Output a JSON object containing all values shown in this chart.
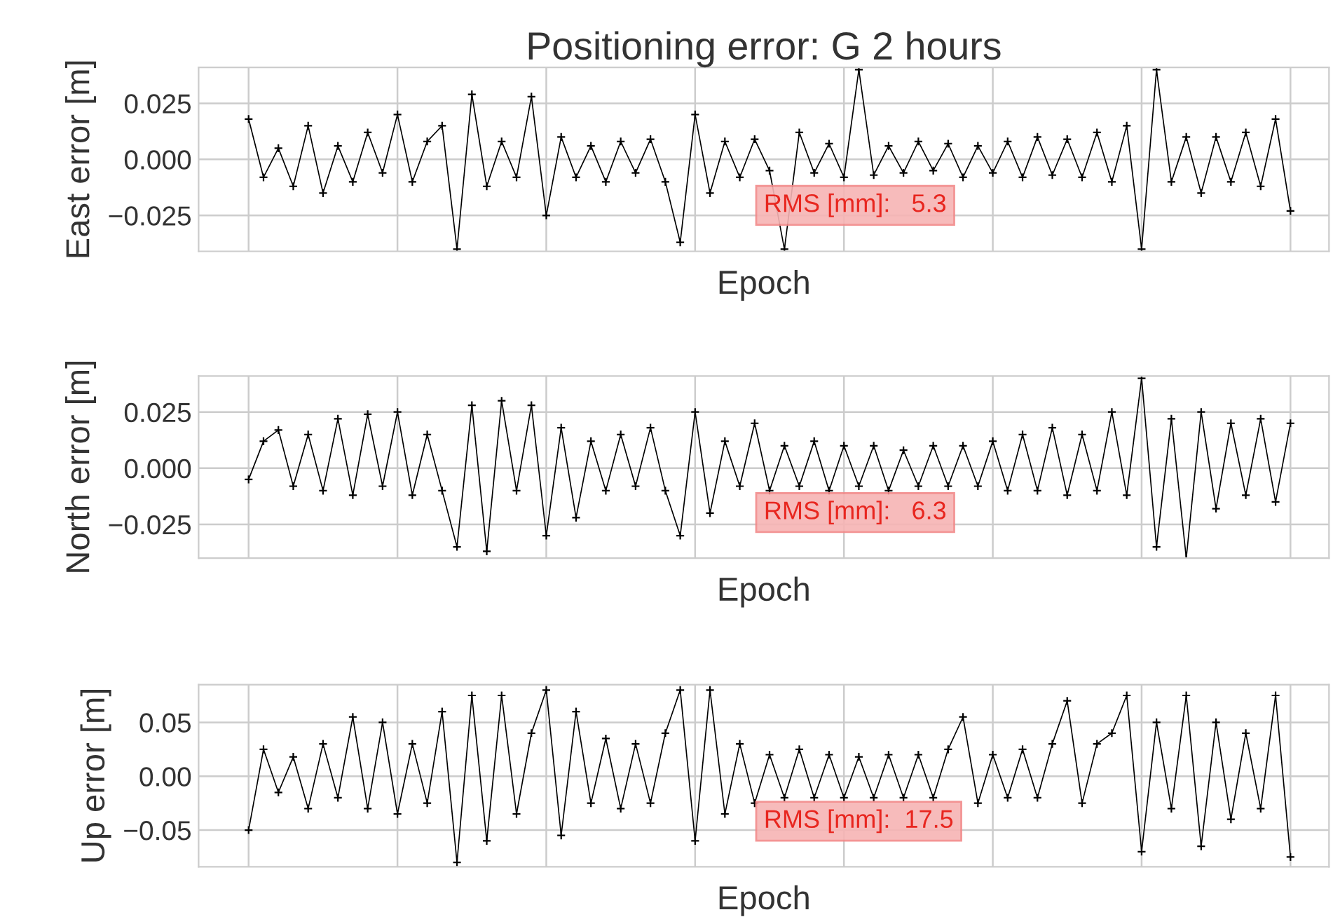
{
  "chart_data": [
    {
      "type": "line",
      "title": "Positioning error: G 2 hours",
      "xlabel": "Epoch",
      "ylabel": "East error [m]",
      "annotations": [
        "RMS [mm]:   5.3"
      ],
      "marker": "cross",
      "grid": true,
      "categories": [
        null,
        null,
        null,
        null,
        null,
        null,
        null,
        null,
        null,
        null,
        null,
        null,
        null,
        null,
        null,
        null,
        null,
        null,
        null,
        null,
        null,
        null,
        null,
        null,
        null,
        null,
        null,
        null,
        null,
        null,
        null,
        null,
        null,
        null,
        null,
        null,
        null,
        null,
        null,
        null,
        null,
        null,
        null,
        null,
        null,
        null,
        null,
        null,
        null,
        null,
        null,
        null,
        null,
        null,
        null,
        null,
        null,
        null,
        null,
        null,
        null,
        null,
        null,
        null,
        null,
        null,
        null,
        null,
        null,
        null,
        null
      ],
      "ylim": [
        -0.041,
        0.041
      ],
      "yticks": [
        {
          "value": -0.025,
          "label": "−0.025"
        },
        {
          "value": 0,
          "label": "0.000"
        },
        {
          "value": 0.025,
          "label": "0.025"
        }
      ],
      "series": [
        {
          "color": "#000000",
          "values": [
            0.018,
            -0.008,
            0.005,
            -0.012,
            0.015,
            -0.015,
            0.006,
            -0.01,
            0.012,
            -0.006,
            0.02,
            -0.01,
            0.008,
            0.015,
            -0.04,
            0.029,
            -0.012,
            0.008,
            -0.008,
            0.028,
            -0.025,
            0.01,
            -0.008,
            0.006,
            -0.01,
            0.008,
            -0.006,
            0.009,
            -0.01,
            -0.037,
            0.02,
            -0.015,
            0.008,
            -0.008,
            0.009,
            -0.005,
            -0.04,
            0.012,
            -0.006,
            0.007,
            -0.008,
            0.04,
            -0.007,
            0.006,
            -0.006,
            0.008,
            -0.005,
            0.007,
            -0.008,
            0.006,
            -0.006,
            0.008,
            -0.008,
            0.01,
            -0.007,
            0.009,
            -0.008,
            0.012,
            -0.01,
            0.015,
            -0.04,
            0.04,
            -0.01,
            0.01,
            -0.015,
            0.01,
            -0.01,
            0.012,
            -0.012,
            0.018,
            -0.023
          ]
        }
      ]
    },
    {
      "type": "line",
      "xlabel": "Epoch",
      "ylabel": "North error [m]",
      "annotations": [
        "RMS [mm]:   6.3"
      ],
      "marker": "cross",
      "grid": true,
      "categories": [
        null,
        null,
        null,
        null,
        null,
        null,
        null,
        null,
        null,
        null,
        null,
        null,
        null,
        null,
        null,
        null,
        null,
        null,
        null,
        null,
        null,
        null,
        null,
        null,
        null,
        null,
        null,
        null,
        null,
        null,
        null,
        null,
        null,
        null,
        null,
        null,
        null,
        null,
        null,
        null,
        null,
        null,
        null,
        null,
        null,
        null,
        null,
        null,
        null,
        null,
        null,
        null,
        null,
        null,
        null,
        null,
        null,
        null,
        null,
        null,
        null,
        null,
        null,
        null,
        null,
        null,
        null,
        null,
        null,
        null,
        null
      ],
      "ylim": [
        -0.04,
        0.041
      ],
      "yticks": [
        {
          "value": -0.025,
          "label": "−0.025"
        },
        {
          "value": 0,
          "label": "0.000"
        },
        {
          "value": 0.025,
          "label": "0.025"
        }
      ],
      "series": [
        {
          "color": "#000000",
          "values": [
            -0.005,
            0.012,
            0.017,
            -0.008,
            0.015,
            -0.01,
            0.022,
            -0.012,
            0.024,
            -0.008,
            0.025,
            -0.012,
            0.015,
            -0.01,
            -0.035,
            0.028,
            -0.037,
            0.03,
            -0.01,
            0.028,
            -0.03,
            0.018,
            -0.022,
            0.012,
            -0.01,
            0.015,
            -0.008,
            0.018,
            -0.01,
            -0.03,
            0.025,
            -0.02,
            0.012,
            -0.008,
            0.02,
            -0.01,
            0.01,
            -0.008,
            0.012,
            -0.01,
            0.01,
            -0.008,
            0.01,
            -0.01,
            0.008,
            -0.008,
            0.01,
            -0.008,
            0.01,
            -0.008,
            0.012,
            -0.01,
            0.015,
            -0.01,
            0.018,
            -0.012,
            0.015,
            -0.01,
            0.025,
            -0.012,
            0.04,
            -0.035,
            0.022,
            -0.04,
            0.025,
            -0.018,
            0.02,
            -0.012,
            0.022,
            -0.015,
            0.02
          ]
        }
      ]
    },
    {
      "type": "line",
      "xlabel": "Epoch",
      "ylabel": "Up error [m]",
      "annotations": [
        "RMS [mm]:  17.5"
      ],
      "marker": "cross",
      "grid": true,
      "categories": [
        null,
        null,
        null,
        null,
        null,
        null,
        null,
        null,
        null,
        null,
        null,
        null,
        null,
        null,
        null,
        null,
        null,
        null,
        null,
        null,
        null,
        null,
        null,
        null,
        null,
        null,
        null,
        null,
        null,
        null,
        null,
        null,
        null,
        null,
        null,
        null,
        null,
        null,
        null,
        null,
        null,
        null,
        null,
        null,
        null,
        null,
        null,
        null,
        null,
        null,
        null,
        null,
        null,
        null,
        null,
        null,
        null,
        null,
        null,
        null,
        null,
        null,
        null,
        null,
        null,
        null,
        null,
        null,
        null,
        null,
        null
      ],
      "ylim": [
        -0.084,
        0.085
      ],
      "yticks": [
        {
          "value": -0.05,
          "label": "−0.05"
        },
        {
          "value": 0,
          "label": "0.00"
        },
        {
          "value": 0.05,
          "label": "0.05"
        }
      ],
      "series": [
        {
          "color": "#000000",
          "values": [
            -0.05,
            0.025,
            -0.015,
            0.018,
            -0.03,
            0.03,
            -0.02,
            0.055,
            -0.03,
            0.05,
            -0.035,
            0.03,
            -0.025,
            0.06,
            -0.08,
            0.075,
            -0.06,
            0.075,
            -0.035,
            0.04,
            0.08,
            -0.055,
            0.06,
            -0.025,
            0.035,
            -0.03,
            0.03,
            -0.025,
            0.04,
            0.08,
            -0.06,
            0.08,
            -0.035,
            0.03,
            -0.025,
            0.02,
            -0.02,
            0.025,
            -0.02,
            0.02,
            -0.02,
            0.018,
            -0.02,
            0.02,
            -0.02,
            0.02,
            -0.02,
            0.025,
            0.055,
            -0.025,
            0.02,
            -0.02,
            0.025,
            -0.02,
            0.03,
            0.07,
            -0.025,
            0.03,
            0.04,
            0.075,
            -0.07,
            0.05,
            -0.03,
            0.075,
            -0.065,
            0.05,
            -0.04,
            0.04,
            -0.03,
            0.075,
            -0.075
          ]
        }
      ]
    }
  ]
}
